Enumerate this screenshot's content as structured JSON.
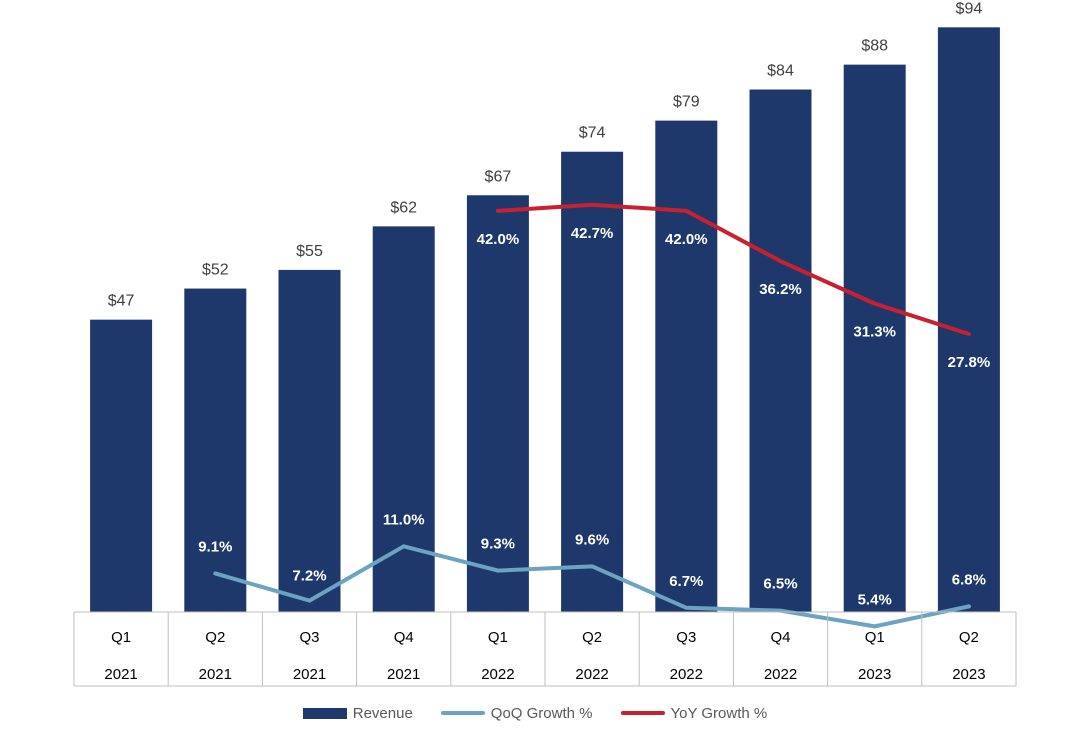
{
  "chart_data": {
    "type": "bar",
    "categories": [
      {
        "quarter": "Q1",
        "year": "2021"
      },
      {
        "quarter": "Q2",
        "year": "2021"
      },
      {
        "quarter": "Q3",
        "year": "2021"
      },
      {
        "quarter": "Q4",
        "year": "2021"
      },
      {
        "quarter": "Q1",
        "year": "2022"
      },
      {
        "quarter": "Q2",
        "year": "2022"
      },
      {
        "quarter": "Q3",
        "year": "2022"
      },
      {
        "quarter": "Q4",
        "year": "2022"
      },
      {
        "quarter": "Q1",
        "year": "2023"
      },
      {
        "quarter": "Q2",
        "year": "2023"
      }
    ],
    "series": [
      {
        "name": "Revenue",
        "type": "bar",
        "color": "#1F386B",
        "values": [
          47,
          52,
          55,
          62,
          67,
          74,
          79,
          84,
          88,
          94
        ],
        "labels": [
          "$47",
          "$52",
          "$55",
          "$62",
          "$67",
          "$74",
          "$79",
          "$84",
          "$88",
          "$94"
        ]
      },
      {
        "name": "QoQ Growth %",
        "type": "line",
        "color": "#6BA3C0",
        "values": [
          null,
          9.1,
          7.2,
          11.0,
          9.3,
          9.6,
          6.7,
          6.5,
          5.4,
          6.8
        ],
        "labels": [
          null,
          "9.1%",
          "7.2%",
          "11.0%",
          "9.3%",
          "9.6%",
          "6.7%",
          "6.5%",
          "5.4%",
          "6.8%"
        ]
      },
      {
        "name": "YoY Growth %",
        "type": "line",
        "color": "#C8202F",
        "values": [
          null,
          null,
          null,
          null,
          42.0,
          42.7,
          42.0,
          36.2,
          31.3,
          27.8
        ],
        "labels": [
          null,
          null,
          null,
          null,
          "42.0%",
          "42.7%",
          "42.0%",
          "36.2%",
          "31.3%",
          "27.8%"
        ]
      }
    ],
    "ylim": [
      0,
      96
    ],
    "legend_position": "bottom",
    "grid": false
  }
}
